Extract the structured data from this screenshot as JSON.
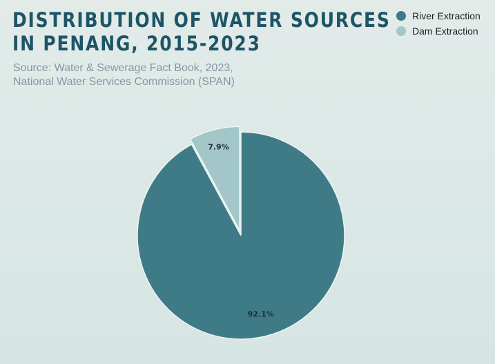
{
  "chart_data": {
    "type": "pie",
    "title_lines": [
      "DISTRIBUTION OF WATER SOURCES",
      "IN PENANG, 2015-2023"
    ],
    "source_lines": [
      "Source: Water & Sewerage Fact Book, 2023,",
      "National Water Services Commission (SPAN)"
    ],
    "legend_placement": "top-right",
    "slices": [
      {
        "name": "River Extraction",
        "value": 92.1,
        "label": "92.1%",
        "color": "#3f7b87",
        "exploded": false
      },
      {
        "name": "Dam Extraction",
        "value": 7.9,
        "label": "7.9%",
        "color": "#a3c6c9",
        "exploded": true
      }
    ]
  }
}
